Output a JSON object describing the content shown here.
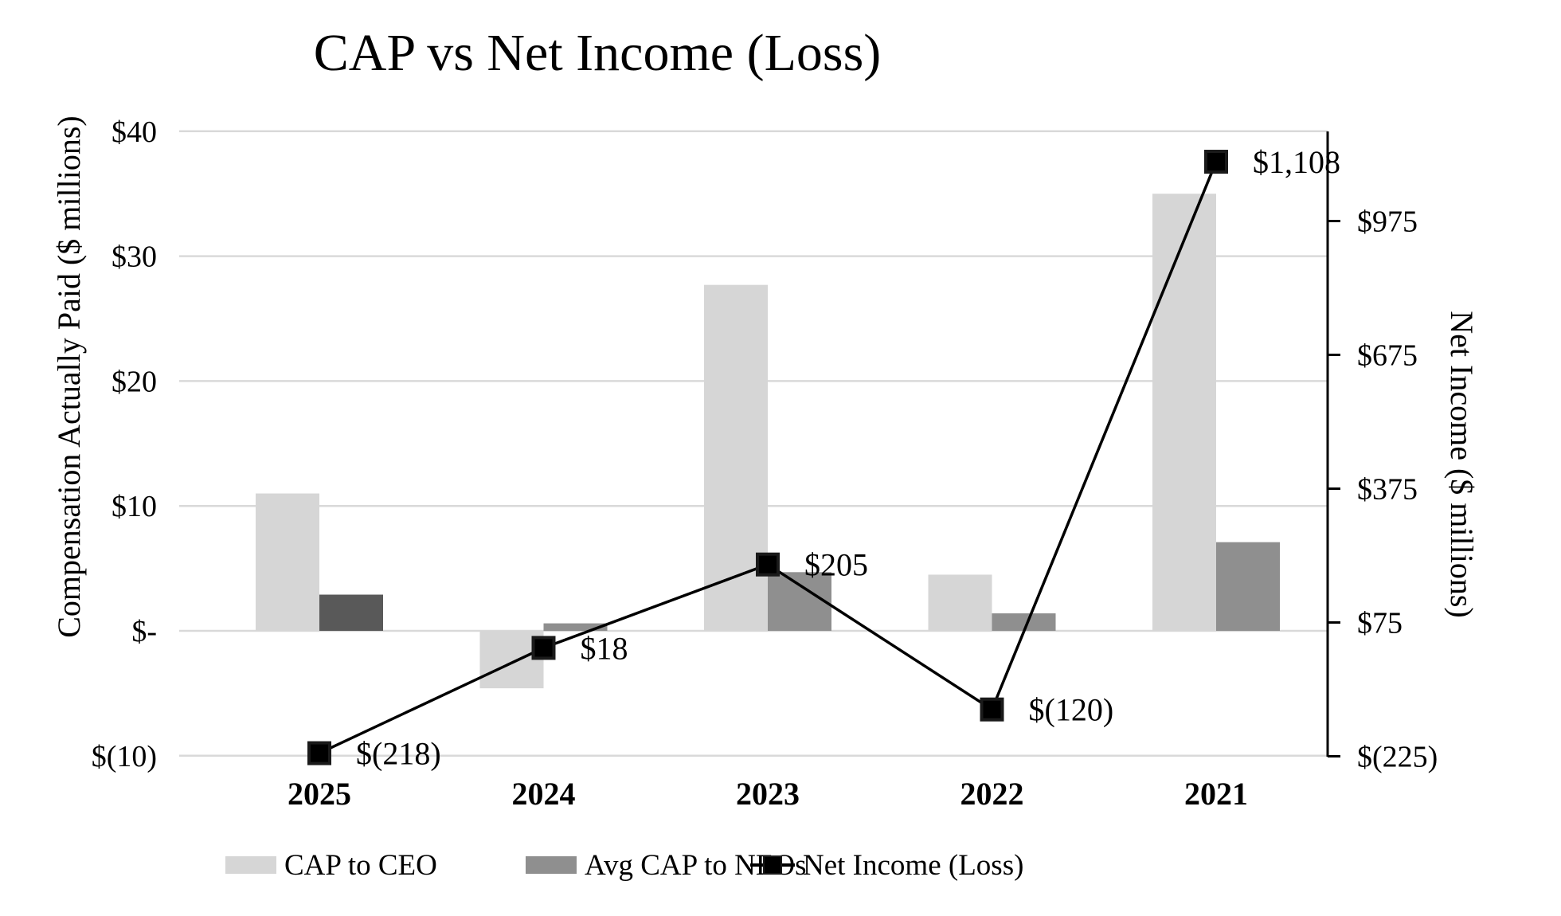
{
  "chart": {
    "title": "CAP vs Net Income (Loss)",
    "left_axis_title": "Compensation Actually Paid ($ millions)",
    "right_axis_title": "Net Income ($ millions)"
  },
  "legend": {
    "items": [
      {
        "label": "CAP to CEO",
        "type": "bar",
        "color": "#D6D6D6"
      },
      {
        "label": "Avg CAP to NEOs",
        "type": "bar",
        "color": "#8F8F8F"
      },
      {
        "label": "Net Income (Loss)",
        "type": "line",
        "color": "#000000"
      }
    ]
  },
  "chart_data": {
    "type": "combo",
    "title": "CAP vs Net Income (Loss)",
    "categories": [
      "2025",
      "2024",
      "2023",
      "2022",
      "2021"
    ],
    "series": [
      {
        "name": "CAP to CEO",
        "type": "bar",
        "axis": "left",
        "color": "#D6D6D6",
        "point_colors": [
          "#D6D6D6",
          "#D6D6D6",
          "#D6D6D6",
          "#D6D6D6",
          "#D6D6D6"
        ],
        "values": [
          11,
          -4.6,
          27.7,
          4.5,
          35
        ]
      },
      {
        "name": "Avg CAP to NEOs",
        "type": "bar",
        "axis": "left",
        "color": "#8F8F8F",
        "point_colors": [
          "#595959",
          "#8F8F8F",
          "#8F8F8F",
          "#8F8F8F",
          "#8F8F8F"
        ],
        "values": [
          2.9,
          0.6,
          4.7,
          1.4,
          7.1
        ]
      },
      {
        "name": "Net Income (Loss)",
        "type": "line",
        "axis": "right",
        "color": "#000000",
        "values": [
          -218,
          18,
          205,
          -120,
          1108
        ],
        "data_labels": [
          "$(218)",
          "$18",
          "$205",
          "$(120)",
          "$1,108"
        ]
      }
    ],
    "left_axis": {
      "label": "Compensation Actually Paid ($ millions)",
      "range": [
        -10,
        40
      ],
      "gridlines": true,
      "ticks": [
        {
          "value": 40,
          "label": "$40"
        },
        {
          "value": 30,
          "label": "$30"
        },
        {
          "value": 20,
          "label": "$20"
        },
        {
          "value": 10,
          "label": "$10"
        },
        {
          "value": 0,
          "label": "$-"
        },
        {
          "value": -10,
          "label": "$(10)"
        }
      ]
    },
    "right_axis": {
      "label": "Net Income ($ millions)",
      "range": [
        -225,
        1175
      ],
      "ticks": [
        {
          "value": 975,
          "label": "$975"
        },
        {
          "value": 675,
          "label": "$675"
        },
        {
          "value": 375,
          "label": "$375"
        },
        {
          "value": 75,
          "label": "$75"
        },
        {
          "value": -225,
          "label": "$(225)"
        }
      ]
    },
    "layout_hints": {
      "legend_position": "bottom",
      "grid_color": "#D9D9D9",
      "line_color": "#000000",
      "marker_shape": "square"
    }
  }
}
